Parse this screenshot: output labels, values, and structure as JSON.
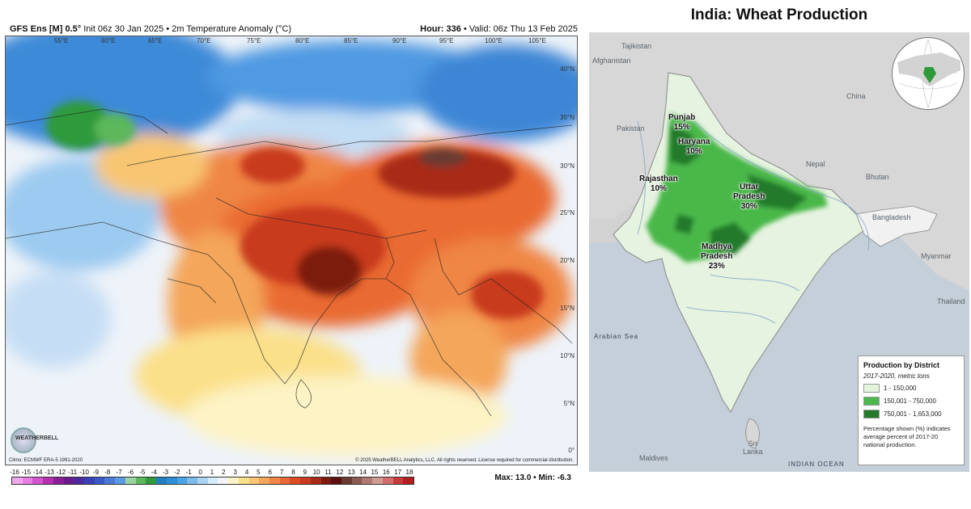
{
  "left_panel": {
    "header_left_bold": "GFS Ens [M] 0.5°",
    "header_left_rest": " Init 06z 30 Jan 2025 • 2m Temperature Anomaly (°C)",
    "header_right_bold": "Hour: 336",
    "header_right_rest": " • Valid: 06z Thu 13 Feb 2025",
    "lon_labels": [
      "55°E",
      "60°E",
      "65°E",
      "70°E",
      "75°E",
      "80°E",
      "85°E",
      "90°E",
      "95°E",
      "100°E",
      "105°E"
    ],
    "lat_labels": [
      "40°N",
      "35°N",
      "30°N",
      "25°N",
      "20°N",
      "15°N",
      "10°N",
      "5°N",
      "0°"
    ],
    "logo_text": "WEATHERBELL",
    "footer_left": "Climo: ECMWF ERA-5 1991-2020",
    "footer_right": "© 2025 WeatherBELL Analytics, LLC. All rights reserved. License required for commercial distribution.",
    "scale_ticks": [
      "-16",
      "-15",
      "-14",
      "-13",
      "-12",
      "-11",
      "-10",
      "-9",
      "-8",
      "-7",
      "-6",
      "-5",
      "-4",
      "-3",
      "-2",
      "-1",
      "0",
      "1",
      "2",
      "3",
      "4",
      "5",
      "6",
      "7",
      "8",
      "9",
      "10",
      "11",
      "12",
      "13",
      "14",
      "15",
      "16",
      "17",
      "18"
    ],
    "colorbar_colors": [
      "#f3a6f0",
      "#e67ee3",
      "#d454cf",
      "#b530b0",
      "#8b1d96",
      "#6a1a8c",
      "#4b2a9c",
      "#3b3fb4",
      "#3a58c8",
      "#4a7ad8",
      "#5c9ae3",
      "#9bd4a2",
      "#5cb85a",
      "#2e9a3a",
      "#1f7fbf",
      "#2a8fd6",
      "#4aa3e3",
      "#7cbcec",
      "#a9d4f3",
      "#d6ebf8",
      "#f1f5f9",
      "#fdf3c4",
      "#fbe08a",
      "#f8c673",
      "#f4a65a",
      "#ef8645",
      "#e96a33",
      "#dd4b23",
      "#c83a1b",
      "#a92a16",
      "#7c1a10",
      "#5a100d",
      "#6a3a32",
      "#8a5a52",
      "#b07a72",
      "#d09b92",
      "#d46c6c",
      "#c73a3a",
      "#b21e1e"
    ],
    "max_min": "Max: 13.0 • Min: -6.3"
  },
  "right_panel": {
    "title": "India: Wheat Production",
    "places": {
      "tajikistan": "Tajikistan",
      "afghanistan": "Afghanistan",
      "pakistan": "Pakistan",
      "china": "China",
      "nepal": "Nepal",
      "bhutan": "Bhutan",
      "bangladesh": "Bangladesh",
      "myanmar": "Myanmar",
      "thailand": "Thailand",
      "sri_lanka": "Sri\nLanka",
      "maldives": "Maldives"
    },
    "seas": {
      "arabian": "Arabian Sea",
      "indian": "INDIAN OCEAN"
    },
    "states": [
      {
        "name": "Punjab",
        "pct": "15%"
      },
      {
        "name": "Haryana",
        "pct": "10%"
      },
      {
        "name": "Rajasthan",
        "pct": "10%"
      },
      {
        "name": "Uttar\nPradesh",
        "pct": "30%"
      },
      {
        "name": "Madhya\nPradesh",
        "pct": "23%"
      }
    ],
    "legend": {
      "title": "Production by District",
      "subtitle": "2017-2020, metric tons",
      "items": [
        {
          "label": "1 - 150,000",
          "color": "#e2f4dc"
        },
        {
          "label": "150,001 - 750,000",
          "color": "#4ab84a"
        },
        {
          "label": "750,001 - 1,653,000",
          "color": "#237a2a"
        }
      ],
      "note": "Percentage shown (%) indicates average percent of 2017-20 national production."
    }
  }
}
